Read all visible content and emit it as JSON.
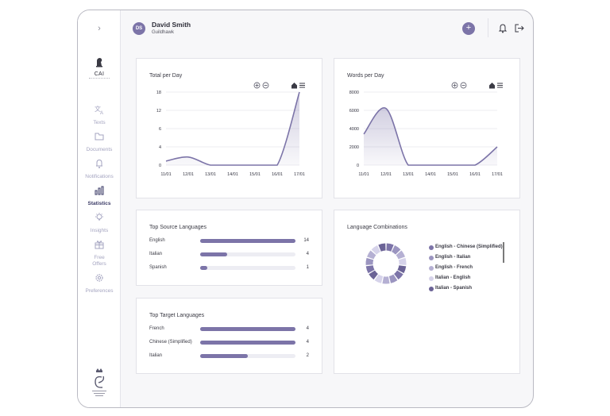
{
  "sidebar": {
    "collapse_icon": "chevron-right-icon",
    "logo_text": "CAI",
    "items": [
      {
        "label": "Texts",
        "icon": "translate-icon",
        "active": false
      },
      {
        "label": "Documents",
        "icon": "folder-icon",
        "active": false
      },
      {
        "label": "Notifications",
        "icon": "bell-icon",
        "active": false
      },
      {
        "label": "Statistics",
        "icon": "bar-chart-icon",
        "active": true
      },
      {
        "label": "Insights",
        "icon": "lightbulb-icon",
        "active": false
      },
      {
        "label": "Free Offers",
        "icon": "gift-icon",
        "active": false
      },
      {
        "label": "Preferences",
        "icon": "gear-icon",
        "active": false
      }
    ]
  },
  "header": {
    "avatar_initials": "DS",
    "user_name": "David Smith",
    "organization": "Guildhawk",
    "add_label": "+"
  },
  "colors": {
    "accent": "#7c74a8",
    "accent_light": "#b5b0d3",
    "accent_lighter": "#d6d3ea"
  },
  "cards": {
    "total_per_day": {
      "title": "Total per Day"
    },
    "words_per_day": {
      "title": "Words per Day"
    },
    "top_source": {
      "title": "Top Source Languages"
    },
    "top_target": {
      "title": "Top Target Languages"
    },
    "combinations": {
      "title": "Language Combinations"
    }
  },
  "chart_data": [
    {
      "type": "area",
      "title": "Total per Day",
      "x": [
        "11/01",
        "12/01",
        "13/01",
        "14/01",
        "15/01",
        "16/01",
        "17/01"
      ],
      "y_ticks": [
        "18",
        "12",
        "6",
        "4",
        "0"
      ],
      "values": [
        1,
        2,
        0,
        0,
        0,
        0,
        18
      ],
      "ylim": [
        0,
        18
      ],
      "grid": true
    },
    {
      "type": "area",
      "title": "Words per Day",
      "x": [
        "11/01",
        "12/01",
        "13/01",
        "14/01",
        "15/01",
        "16/01",
        "17/01"
      ],
      "y_ticks": [
        "8000",
        "6000",
        "4000",
        "2000",
        "0"
      ],
      "values": [
        3400,
        6200,
        0,
        0,
        0,
        0,
        2000
      ],
      "ylim": [
        0,
        8000
      ],
      "grid": true
    },
    {
      "type": "bar",
      "title": "Top Source Languages",
      "categories": [
        "English",
        "Italian",
        "Spanish"
      ],
      "values": [
        14,
        4,
        1
      ],
      "max": 14
    },
    {
      "type": "bar",
      "title": "Top Target Languages",
      "categories": [
        "French",
        "Chinese (Simplified)",
        "Italian"
      ],
      "values": [
        4,
        4,
        2
      ],
      "max": 4
    },
    {
      "type": "pie",
      "title": "Language Combinations",
      "categories": [
        "English - Chinese (Simplified)",
        "English - Italian",
        "English - French",
        "Italian - English",
        "Italian - Spanish"
      ],
      "values": [
        4,
        4,
        4,
        3,
        2
      ],
      "colors": [
        "#7c74a8",
        "#9b95c0",
        "#b5b0d3",
        "#d6d3ea",
        "#6b6396"
      ]
    }
  ]
}
